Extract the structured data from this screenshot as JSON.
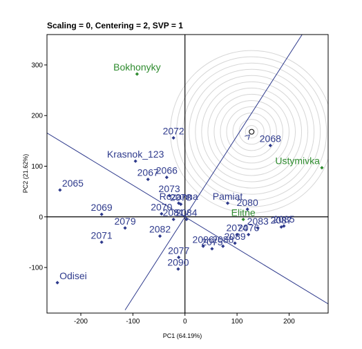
{
  "chart_data": {
    "type": "scatter",
    "title": "Scaling = 0, Centering = 2, SVP = 1",
    "xlabel": "PC1 (64.19%)",
    "ylabel": "PC2 (21.62%)",
    "xlim": [
      -265,
      275
    ],
    "ylim": [
      -190,
      360
    ],
    "x_ticks": [
      -200,
      -100,
      0,
      100,
      200
    ],
    "y_ticks": [
      -100,
      0,
      100,
      200,
      300
    ],
    "grid": false,
    "colors": {
      "genotype": "#2e3a8c",
      "environment": "#2e8b2e",
      "rings": "#d6d6d6",
      "axes": "#333333"
    },
    "ideal_point": {
      "x": 128,
      "y": 168
    },
    "ring_radii": [
      12,
      24,
      36,
      48,
      60,
      72,
      84,
      96,
      108,
      120,
      132,
      144,
      156
    ],
    "average_axis": {
      "slope": 1.6,
      "x_range": [
        -115,
        275
      ]
    },
    "perpendicular_axis": {
      "slope": -0.625,
      "x_range": [
        -265,
        275
      ]
    },
    "genotypes": [
      {
        "name": "2065",
        "x": -240,
        "y": 53
      },
      {
        "name": "2066",
        "x": -35,
        "y": 78
      },
      {
        "name": "2067",
        "x": -71,
        "y": 74
      },
      {
        "name": "2068",
        "x": 164,
        "y": 141
      },
      {
        "name": "2069",
        "x": -160,
        "y": 5
      },
      {
        "name": "2070",
        "x": -45,
        "y": 6
      },
      {
        "name": "2071",
        "x": -160,
        "y": -50
      },
      {
        "name": "2072",
        "x": -22,
        "y": 156
      },
      {
        "name": "2073",
        "x": -30,
        "y": 42
      },
      {
        "name": "2074",
        "x": 100,
        "y": -35
      },
      {
        "name": "2075",
        "x": 52,
        "y": -63
      },
      {
        "name": "2076",
        "x": 122,
        "y": -35
      },
      {
        "name": "2077",
        "x": -12,
        "y": -80
      },
      {
        "name": "2078",
        "x": -8,
        "y": 25
      },
      {
        "name": "2079",
        "x": -115,
        "y": -22
      },
      {
        "name": "2080",
        "x": 120,
        "y": 15
      },
      {
        "name": "2081",
        "x": -22,
        "y": -5
      },
      {
        "name": "2082",
        "x": -48,
        "y": -38
      },
      {
        "name": "2083",
        "x": 140,
        "y": -22
      },
      {
        "name": "2084",
        "x": 3,
        "y": -5
      },
      {
        "name": "2085",
        "x": 190,
        "y": -18
      },
      {
        "name": "2086",
        "x": 35,
        "y": -58
      },
      {
        "name": "2087",
        "x": 185,
        "y": -20
      },
      {
        "name": "2088",
        "x": 73,
        "y": -58
      },
      {
        "name": "2089",
        "x": 96,
        "y": -52
      },
      {
        "name": "2090",
        "x": -13,
        "y": -103
      },
      {
        "name": "Krasnok_123",
        "x": -95,
        "y": 110
      },
      {
        "name": "Rozanna",
        "x": -12,
        "y": 27
      },
      {
        "name": "Pamiat",
        "x": 82,
        "y": 27
      },
      {
        "name": "Odisei",
        "x": -245,
        "y": -130
      }
    ],
    "environments": [
      {
        "name": "Bokhonyky",
        "x": -92,
        "y": 282
      },
      {
        "name": "Ustymivka",
        "x": 263,
        "y": 97
      },
      {
        "name": "Elitne",
        "x": 112,
        "y": -5
      }
    ]
  }
}
